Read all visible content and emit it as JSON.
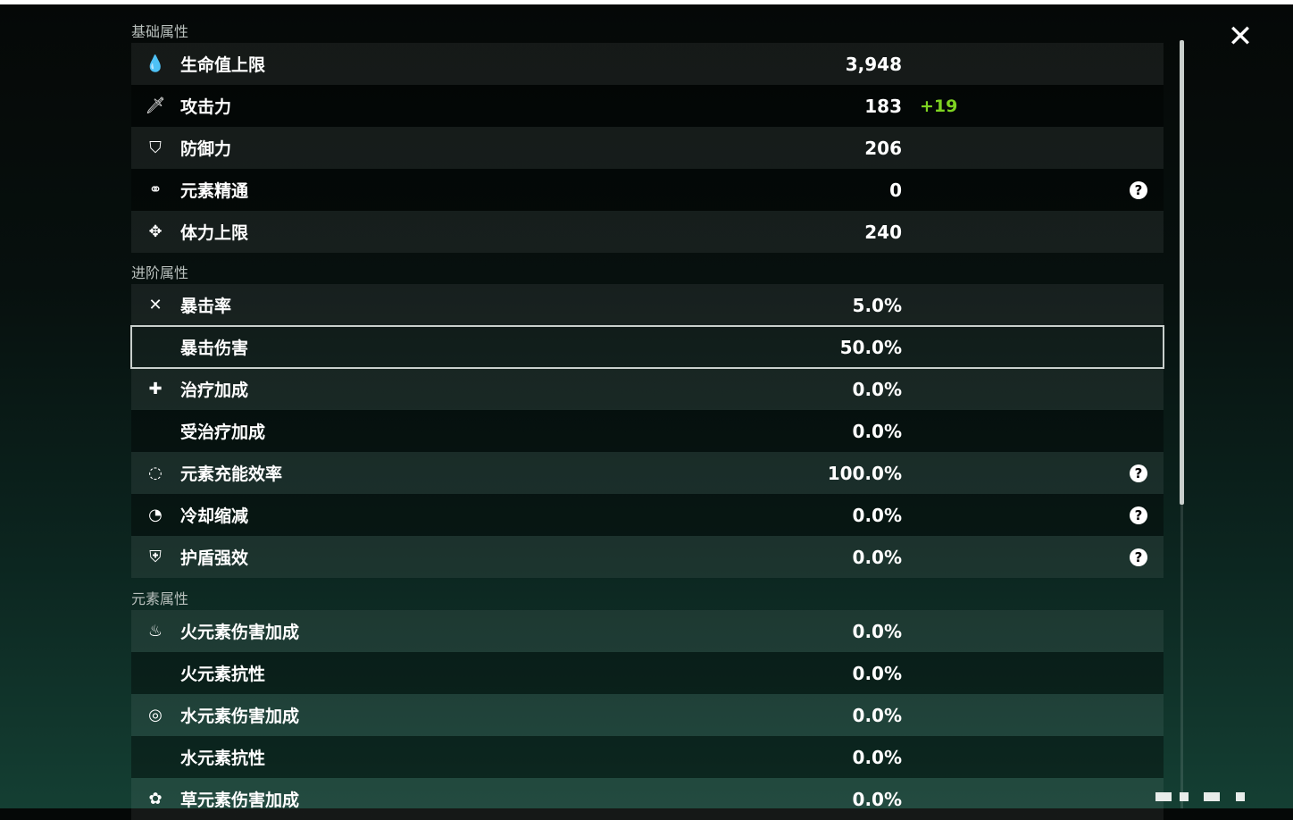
{
  "close_icon": "close-icon",
  "sections": [
    {
      "title": "基础属性",
      "rows": [
        {
          "icon": "hp-drop-icon",
          "glyph": "💧",
          "label": "生命值上限",
          "value": "3,948"
        },
        {
          "icon": "sword-icon",
          "glyph": "🗡",
          "label": "攻击力",
          "value": "183",
          "bonus": "+19"
        },
        {
          "icon": "shield-icon",
          "glyph": "⛉",
          "label": "防御力",
          "value": "206"
        },
        {
          "icon": "elemental-mastery-icon",
          "glyph": "⚭",
          "label": "元素精通",
          "value": "0",
          "help": true
        },
        {
          "icon": "stamina-icon",
          "glyph": "✥",
          "label": "体力上限",
          "value": "240"
        }
      ]
    },
    {
      "title": "进阶属性",
      "rows": [
        {
          "icon": "crit-rate-icon",
          "glyph": "✕",
          "label": "暴击率",
          "value": "5.0%"
        },
        {
          "icon": "crit-dmg-icon",
          "glyph": "",
          "label": "暴击伤害",
          "value": "50.0%",
          "selected": true
        },
        {
          "icon": "healing-bonus-icon",
          "glyph": "✚",
          "label": "治疗加成",
          "value": "0.0%"
        },
        {
          "icon": "",
          "glyph": "",
          "label": "受治疗加成",
          "value": "0.0%"
        },
        {
          "icon": "energy-recharge-icon",
          "glyph": "◌",
          "label": "元素充能效率",
          "value": "100.0%",
          "help": true
        },
        {
          "icon": "cd-reduction-icon",
          "glyph": "◔",
          "label": "冷却缩减",
          "value": "0.0%",
          "help": true
        },
        {
          "icon": "shield-strength-icon",
          "glyph": "⛨",
          "label": "护盾强效",
          "value": "0.0%",
          "help": true
        }
      ]
    },
    {
      "title": "元素属性",
      "rows": [
        {
          "icon": "pyro-icon",
          "glyph": "♨",
          "label": "火元素伤害加成",
          "value": "0.0%"
        },
        {
          "icon": "",
          "glyph": "",
          "label": "火元素抗性",
          "value": "0.0%"
        },
        {
          "icon": "hydro-icon",
          "glyph": "◎",
          "label": "水元素伤害加成",
          "value": "0.0%"
        },
        {
          "icon": "",
          "glyph": "",
          "label": "水元素抗性",
          "value": "0.0%"
        },
        {
          "icon": "dendro-icon",
          "glyph": "✿",
          "label": "草元素伤害加成",
          "value": "0.0%"
        }
      ]
    }
  ],
  "colors": {
    "bonus": "#7ed321",
    "background_bottom": "#143f33"
  }
}
